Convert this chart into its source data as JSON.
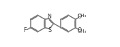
{
  "bg_color": "#ffffff",
  "line_color": "#777777",
  "text_color": "#333333",
  "linewidth": 1.1,
  "fontsize": 5.5,
  "fig_width": 1.76,
  "fig_height": 0.69,
  "dpi": 100,
  "xlim": [
    0,
    11
  ],
  "ylim": [
    0,
    6.5
  ]
}
